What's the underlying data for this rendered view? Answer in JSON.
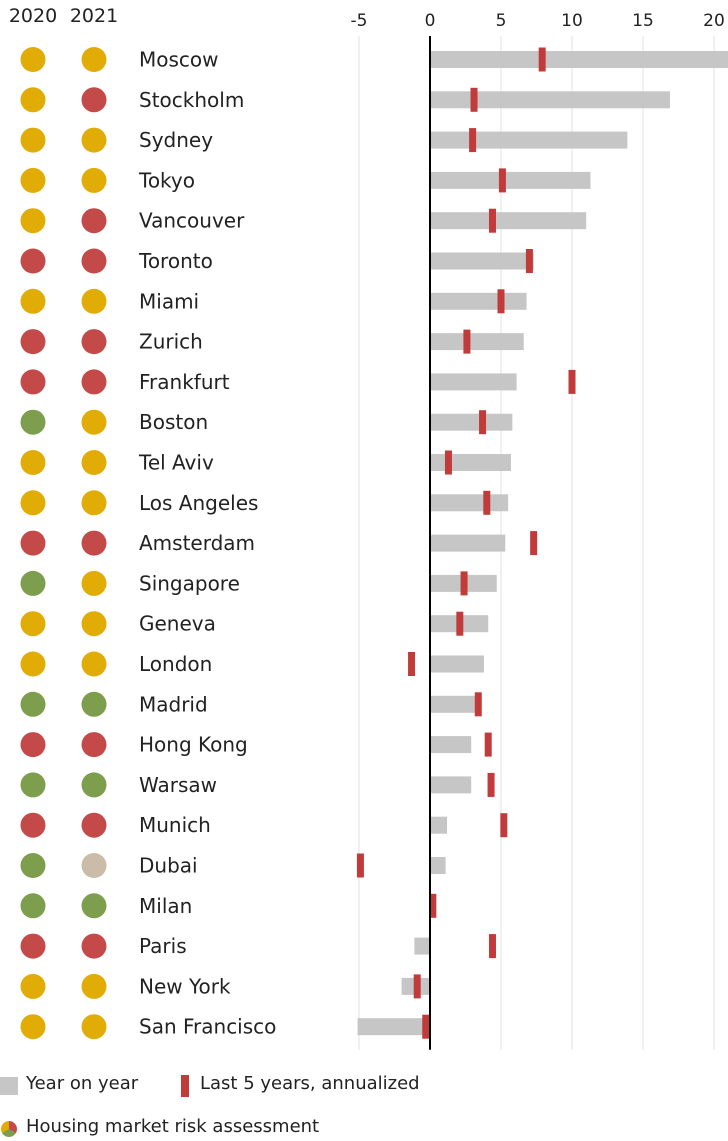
{
  "chart_data": {
    "type": "bar",
    "year_headers": [
      "2020",
      "2021"
    ],
    "x_ticks": [
      -5,
      0,
      5,
      10,
      15,
      20
    ],
    "xlim": [
      -5,
      21
    ],
    "categories": [
      "Moscow",
      "Stockholm",
      "Sydney",
      "Tokyo",
      "Vancouver",
      "Toronto",
      "Miami",
      "Zurich",
      "Frankfurt",
      "Boston",
      "Tel Aviv",
      "Los Angeles",
      "Amsterdam",
      "Singapore",
      "Geneva",
      "London",
      "Madrid",
      "Hong Kong",
      "Warsaw",
      "Munich",
      "Dubai",
      "Milan",
      "Paris",
      "New York",
      "San Francisco"
    ],
    "series": [
      {
        "name": "Year on year",
        "type": "bar",
        "values": [
          21,
          16.9,
          13.9,
          11.3,
          11,
          7.3,
          6.8,
          6.6,
          6.1,
          5.8,
          5.7,
          5.5,
          5.3,
          4.7,
          4.1,
          3.8,
          3.3,
          2.9,
          2.9,
          1.2,
          1.1,
          0,
          -1.1,
          -2,
          -5.1
        ]
      },
      {
        "name": "Last 5 years, annualized",
        "type": "marker",
        "values": [
          7.9,
          3.1,
          3,
          5.1,
          4.4,
          7,
          5,
          2.6,
          10,
          3.7,
          1.3,
          4,
          7.3,
          2.4,
          2.1,
          -1.3,
          3.4,
          4.1,
          4.3,
          5.2,
          -4.9,
          0.2,
          4.4,
          -0.9,
          -0.3
        ]
      }
    ],
    "risk": {
      "2020": [
        "amber",
        "amber",
        "amber",
        "amber",
        "amber",
        "red",
        "amber",
        "red",
        "red",
        "green",
        "amber",
        "amber",
        "red",
        "green",
        "amber",
        "amber",
        "green",
        "red",
        "green",
        "red",
        "green",
        "green",
        "red",
        "amber",
        "amber"
      ],
      "2021": [
        "amber",
        "red",
        "amber",
        "amber",
        "red",
        "red",
        "amber",
        "red",
        "red",
        "amber",
        "amber",
        "amber",
        "red",
        "amber",
        "amber",
        "amber",
        "green",
        "red",
        "green",
        "red",
        "beige",
        "green",
        "red",
        "amber",
        "amber"
      ]
    },
    "colors": {
      "bar": "#c6c6c6",
      "marker": "#c23b3b",
      "amber": "#e2ac07",
      "red": "#c44a4a",
      "green": "#7d9f4d",
      "beige": "#cbbcaa",
      "grid": "#e0e0e0",
      "axis": "#000000"
    }
  },
  "legend": {
    "year_on_year": "Year on year",
    "last5": "Last 5 years, annualized",
    "risk": "Housing market risk assessment"
  }
}
